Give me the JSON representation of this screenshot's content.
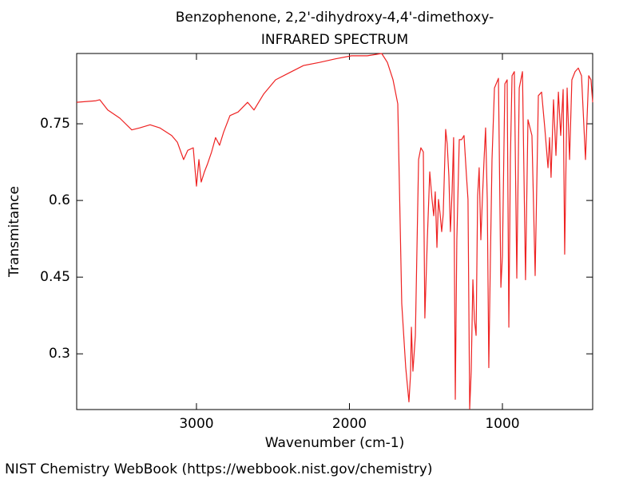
{
  "chart_data": {
    "type": "line",
    "title": "Benzophenone, 2,2'-dihydroxy-4,4'-dimethoxy-",
    "subtitle": "INFRARED SPECTRUM",
    "x_label": "Wavenumber (cm-1)",
    "y_label": "Transmitance",
    "source": "NIST Chemistry WebBook (https://webbook.nist.gov/chemistry)",
    "color": "#ee2222",
    "xlim": [
      3783,
      410
    ],
    "ylim": [
      0.191,
      0.8875
    ],
    "xticks": [
      3000,
      2000,
      1000
    ],
    "yticks": [
      0.3,
      0.45,
      0.6,
      0.75
    ],
    "x": [
      3783,
      3658,
      3632,
      3580,
      3501,
      3423,
      3371,
      3303,
      3240,
      3162,
      3125,
      3084,
      3057,
      3021,
      3000,
      2984,
      2969,
      2948,
      2927,
      2901,
      2875,
      2849,
      2822,
      2781,
      2728,
      2666,
      2624,
      2561,
      2483,
      2405,
      2300,
      2196,
      2091,
      1987,
      1883,
      1789,
      1752,
      1715,
      1684,
      1658,
      1632,
      1611,
      1601,
      1595,
      1585,
      1569,
      1548,
      1533,
      1517,
      1507,
      1491,
      1475,
      1460,
      1449,
      1439,
      1428,
      1418,
      1407,
      1397,
      1387,
      1371,
      1361,
      1350,
      1340,
      1329,
      1319,
      1308,
      1298,
      1282,
      1267,
      1251,
      1235,
      1225,
      1214,
      1204,
      1193,
      1183,
      1172,
      1162,
      1152,
      1141,
      1131,
      1120,
      1110,
      1099,
      1089,
      1079,
      1068,
      1052,
      1026,
      1010,
      1000,
      984,
      969,
      958,
      948,
      937,
      922,
      906,
      890,
      869,
      849,
      833,
      807,
      786,
      765,
      744,
      723,
      702,
      692,
      682,
      666,
      650,
      634,
      619,
      603,
      593,
      577,
      561,
      546,
      525,
      504,
      483,
      457,
      436,
      421,
      410
    ],
    "values": [
      0.792,
      0.795,
      0.797,
      0.777,
      0.761,
      0.738,
      0.742,
      0.748,
      0.742,
      0.727,
      0.714,
      0.68,
      0.698,
      0.703,
      0.628,
      0.68,
      0.636,
      0.656,
      0.672,
      0.695,
      0.723,
      0.708,
      0.734,
      0.766,
      0.773,
      0.792,
      0.777,
      0.808,
      0.836,
      0.848,
      0.864,
      0.87,
      0.877,
      0.883,
      0.883,
      0.8875,
      0.87,
      0.836,
      0.789,
      0.398,
      0.273,
      0.206,
      0.258,
      0.352,
      0.266,
      0.336,
      0.68,
      0.703,
      0.695,
      0.37,
      0.523,
      0.656,
      0.602,
      0.57,
      0.617,
      0.508,
      0.602,
      0.573,
      0.539,
      0.573,
      0.739,
      0.711,
      0.648,
      0.539,
      0.617,
      0.723,
      0.211,
      0.523,
      0.719,
      0.719,
      0.727,
      0.648,
      0.602,
      0.192,
      0.266,
      0.445,
      0.367,
      0.336,
      0.609,
      0.664,
      0.523,
      0.602,
      0.68,
      0.742,
      0.602,
      0.273,
      0.477,
      0.68,
      0.82,
      0.839,
      0.43,
      0.492,
      0.828,
      0.836,
      0.352,
      0.68,
      0.844,
      0.852,
      0.448,
      0.82,
      0.852,
      0.445,
      0.758,
      0.727,
      0.453,
      0.805,
      0.812,
      0.742,
      0.664,
      0.723,
      0.645,
      0.797,
      0.688,
      0.812,
      0.727,
      0.817,
      0.495,
      0.82,
      0.68,
      0.836,
      0.852,
      0.859,
      0.844,
      0.68,
      0.844,
      0.836,
      0.792
    ]
  }
}
